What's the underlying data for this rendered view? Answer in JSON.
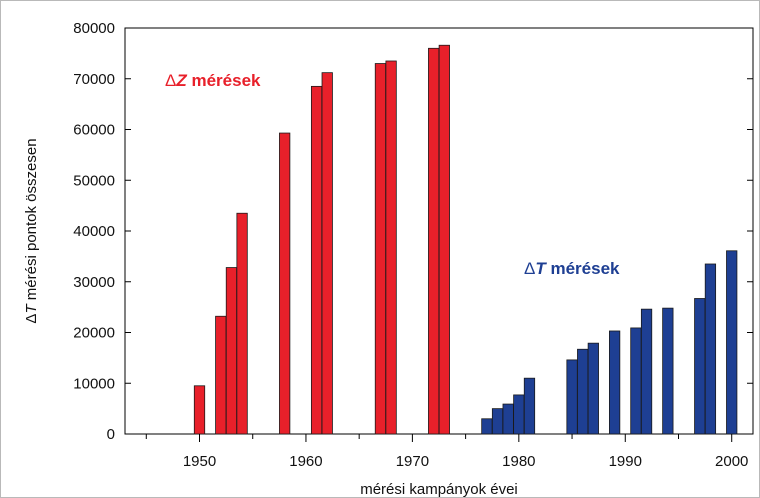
{
  "chart_data": {
    "type": "bar",
    "xlabel": "mérési kampányok évei",
    "ylabel": "ΔT mérési pontok összesen",
    "xlim": [
      1943,
      2002
    ],
    "ylim": [
      0,
      80000
    ],
    "x_ticks": [
      1950,
      1960,
      1970,
      1980,
      1990,
      2000
    ],
    "y_ticks": [
      0,
      10000,
      20000,
      30000,
      40000,
      50000,
      60000,
      70000,
      80000
    ],
    "x_minor_step": 5,
    "grid": false,
    "series": [
      {
        "name": "ΔZ mérések",
        "color": "#e8202a",
        "x": [
          1950,
          1952,
          1953,
          1954,
          1958,
          1961,
          1962,
          1967,
          1968,
          1972,
          1973
        ],
        "values": [
          9500,
          23200,
          32800,
          43500,
          59300,
          68500,
          71200,
          73000,
          73500,
          76000,
          76600
        ]
      },
      {
        "name": "ΔT mérések",
        "color": "#1e3f93",
        "x": [
          1977,
          1978,
          1979,
          1980,
          1981,
          1985,
          1986,
          1987,
          1989,
          1991,
          1992,
          1994,
          1997,
          1998,
          2000
        ],
        "values": [
          3000,
          5000,
          5900,
          7700,
          11000,
          14600,
          16700,
          17900,
          20300,
          20900,
          24600,
          24800,
          26700,
          33500,
          36100
        ]
      }
    ],
    "annotations": [
      {
        "prefix": "Δ",
        "var": "Z",
        "rest": " mérések",
        "color": "#e8202a"
      },
      {
        "prefix": "Δ",
        "var": "T",
        "rest": " mérések",
        "color": "#1e3f93"
      }
    ]
  }
}
